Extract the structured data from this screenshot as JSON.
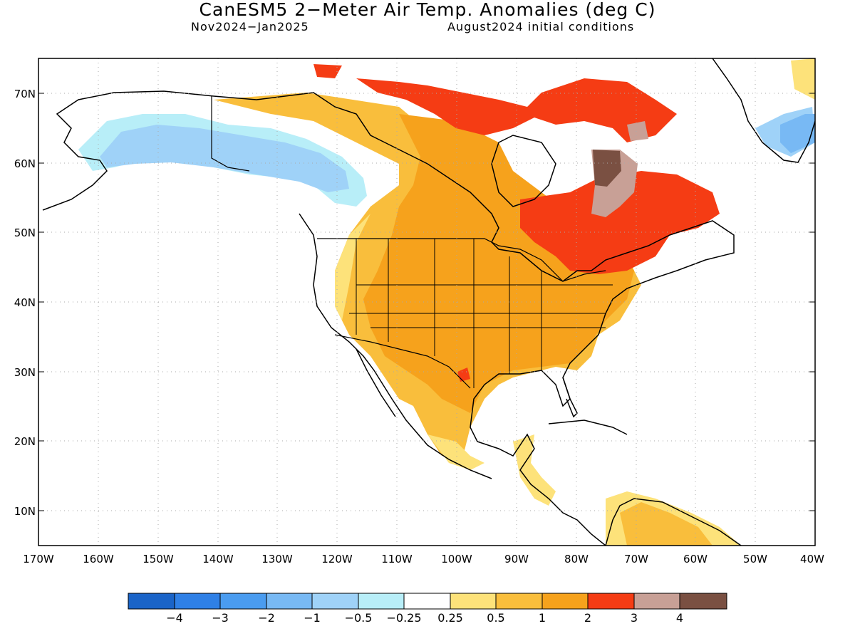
{
  "header": {
    "title": "CanESM5 2−Meter Air Temp. Anomalies (deg C)",
    "period": "Nov2024−Jan2025",
    "init": "August2024 initial conditions"
  },
  "map": {
    "lat_labels": [
      "70N",
      "60N",
      "50N",
      "40N",
      "30N",
      "20N",
      "10N"
    ],
    "lon_labels": [
      "170W",
      "160W",
      "150W",
      "140W",
      "130W",
      "120W",
      "110W",
      "100W",
      "90W",
      "80W",
      "70W",
      "60W",
      "50W",
      "40W"
    ]
  },
  "colorbar": {
    "labels": [
      "−4",
      "−3",
      "−2",
      "−1",
      "−0.5",
      "−0.25",
      "0.25",
      "0.5",
      "1",
      "2",
      "3",
      "4"
    ],
    "colors": [
      "#1a64c8",
      "#2f80e6",
      "#4a9cf0",
      "#78b9f4",
      "#9fd2f8",
      "#b8eef8",
      "#ffffff",
      "#fde27a",
      "#f9be3c",
      "#f6a21c",
      "#f53c14",
      "#c8a096",
      "#7a5042"
    ]
  }
}
